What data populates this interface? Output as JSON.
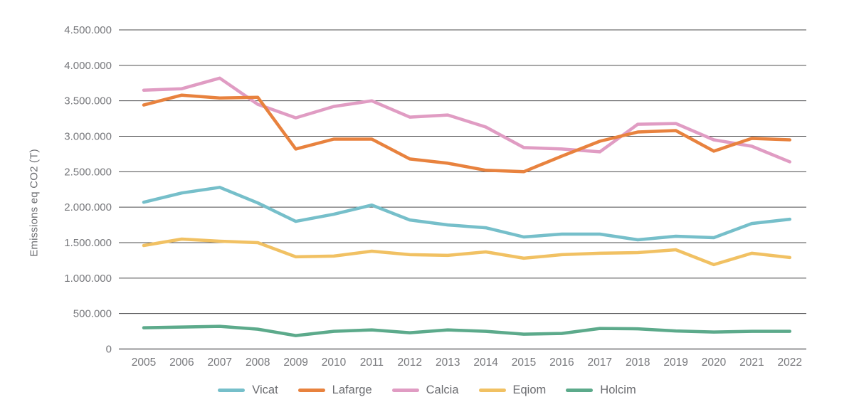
{
  "page": {
    "background": "#ffffff"
  },
  "chart_data": {
    "type": "line",
    "title": "",
    "ylabel": "Emissions eq CO2 (T)",
    "xlabel": "",
    "x": [
      "2005",
      "2006",
      "2007",
      "2008",
      "2009",
      "2010",
      "2011",
      "2012",
      "2013",
      "2014",
      "2015",
      "2016",
      "2017",
      "2018",
      "2019",
      "2020",
      "2021",
      "2022"
    ],
    "ylim": [
      0,
      4500000
    ],
    "ytick_interval": 500000,
    "ytick_labels": [
      "0",
      "500.000",
      "1.000.000",
      "1.500.000",
      "2.000.000",
      "2.500.000",
      "3.000.000",
      "3.500.000",
      "4.000.000",
      "4.500.000"
    ],
    "grid": true,
    "legend_position": "bottom",
    "style": {
      "gridline_color": "#4c4c4e",
      "zeroline_color": "#949497",
      "axis_text_color": "#77787c"
    },
    "series": [
      {
        "name": "Vicat",
        "color": "#76bfca",
        "values": [
          2070000,
          2200000,
          2280000,
          2060000,
          1800000,
          1900000,
          2030000,
          1820000,
          1750000,
          1710000,
          1580000,
          1620000,
          1620000,
          1540000,
          1590000,
          1570000,
          1770000,
          1830000
        ]
      },
      {
        "name": "Lafarge",
        "color": "#e8823e",
        "values": [
          3440000,
          3580000,
          3540000,
          3550000,
          2820000,
          2960000,
          2960000,
          2680000,
          2620000,
          2520000,
          2500000,
          2720000,
          2930000,
          3060000,
          3080000,
          2790000,
          2970000,
          2950000
        ]
      },
      {
        "name": "Calcia",
        "color": "#e09cc3",
        "values": [
          3650000,
          3670000,
          3820000,
          3450000,
          3260000,
          3420000,
          3500000,
          3270000,
          3300000,
          3130000,
          2840000,
          2820000,
          2780000,
          3170000,
          3180000,
          2950000,
          2860000,
          2640000
        ]
      },
      {
        "name": "Eqiom",
        "color": "#f1c163",
        "values": [
          1460000,
          1550000,
          1520000,
          1500000,
          1300000,
          1310000,
          1380000,
          1330000,
          1320000,
          1370000,
          1280000,
          1330000,
          1350000,
          1360000,
          1400000,
          1190000,
          1350000,
          1290000
        ]
      },
      {
        "name": "Holcim",
        "color": "#5caa8b",
        "values": [
          300000,
          310000,
          320000,
          280000,
          190000,
          250000,
          270000,
          230000,
          270000,
          250000,
          210000,
          220000,
          290000,
          285000,
          255000,
          240000,
          250000,
          250000
        ]
      }
    ]
  }
}
